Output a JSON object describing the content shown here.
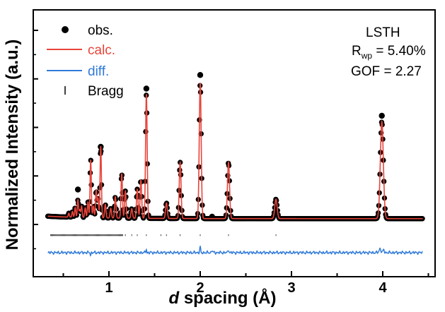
{
  "chart_data": {
    "type": "scatter",
    "xlabel_italic": "d",
    "xlabel_rest": " spacing (Å)",
    "ylabel": "Normalized Intensity (a.u.)",
    "xlim": [
      0.3,
      4.55
    ],
    "ylim": [
      -0.2,
      1.12
    ],
    "x_ticks": [
      1,
      2,
      3,
      4
    ],
    "x_tick_labels": [
      "1",
      "2",
      "3",
      "4"
    ],
    "y_major_ticks": [
      0,
      0.25,
      0.5,
      0.75,
      1.0
    ],
    "y_tick_labels_shown": false,
    "grid": false,
    "legend": {
      "position": "top-left",
      "entries": [
        {
          "label": "obs.",
          "color": "#000000",
          "marker": "dot"
        },
        {
          "label": "calc.",
          "color": "#e8443a",
          "marker": "line"
        },
        {
          "label": "diff.",
          "color": "#2f7ad9",
          "marker": "line"
        },
        {
          "label": "Bragg",
          "color": "#000000",
          "marker": "tick"
        }
      ]
    },
    "annotations": {
      "sample": "LSTH",
      "rwp_main": "R",
      "rwp_sub": "wp",
      "rwp_value": " = 5.40%",
      "gof": "GOF = 2.27"
    },
    "baseline": 0.03,
    "peaks": [
      {
        "d": 0.56,
        "h": 0.02
      },
      {
        "d": 0.6,
        "h": 0.03
      },
      {
        "d": 0.63,
        "h": 0.05
      },
      {
        "d": 0.66,
        "h": 0.09
      },
      {
        "d": 0.68,
        "h": 0.04
      },
      {
        "d": 0.7,
        "h": 0.06
      },
      {
        "d": 0.74,
        "h": 0.05
      },
      {
        "d": 0.77,
        "h": 0.08
      },
      {
        "d": 0.8,
        "h": 0.3
      },
      {
        "d": 0.83,
        "h": 0.06
      },
      {
        "d": 0.86,
        "h": 0.14
      },
      {
        "d": 0.88,
        "h": 0.1
      },
      {
        "d": 0.91,
        "h": 0.37
      },
      {
        "d": 0.96,
        "h": 0.07
      },
      {
        "d": 1.02,
        "h": 0.05
      },
      {
        "d": 1.07,
        "h": 0.11
      },
      {
        "d": 1.14,
        "h": 0.23
      },
      {
        "d": 1.18,
        "h": 0.14
      },
      {
        "d": 1.25,
        "h": 0.05
      },
      {
        "d": 1.31,
        "h": 0.15
      },
      {
        "d": 1.35,
        "h": 0.2
      },
      {
        "d": 1.41,
        "h": 0.64
      },
      {
        "d": 1.63,
        "h": 0.08
      },
      {
        "d": 1.78,
        "h": 0.29
      },
      {
        "d": 2.0,
        "h": 0.7
      },
      {
        "d": 2.31,
        "h": 0.29
      },
      {
        "d": 2.83,
        "h": 0.1
      },
      {
        "d": 3.99,
        "h": 0.5
      }
    ],
    "obs_markers": [
      {
        "d": 0.66,
        "y": 0.18
      },
      {
        "d": 0.91,
        "y": 0.4
      },
      {
        "d": 1.41,
        "y": 0.7
      },
      {
        "d": 2.0,
        "y": 0.77
      },
      {
        "d": 2.13,
        "y": 0.04
      },
      {
        "d": 3.99,
        "y": 0.56
      }
    ],
    "bragg_y": -0.055,
    "diff_offset": -0.145,
    "bragg_positions_sparse": [
      1.18,
      1.25,
      1.31,
      1.41,
      1.57,
      1.63,
      1.78,
      2.0,
      2.31,
      2.83
    ]
  }
}
